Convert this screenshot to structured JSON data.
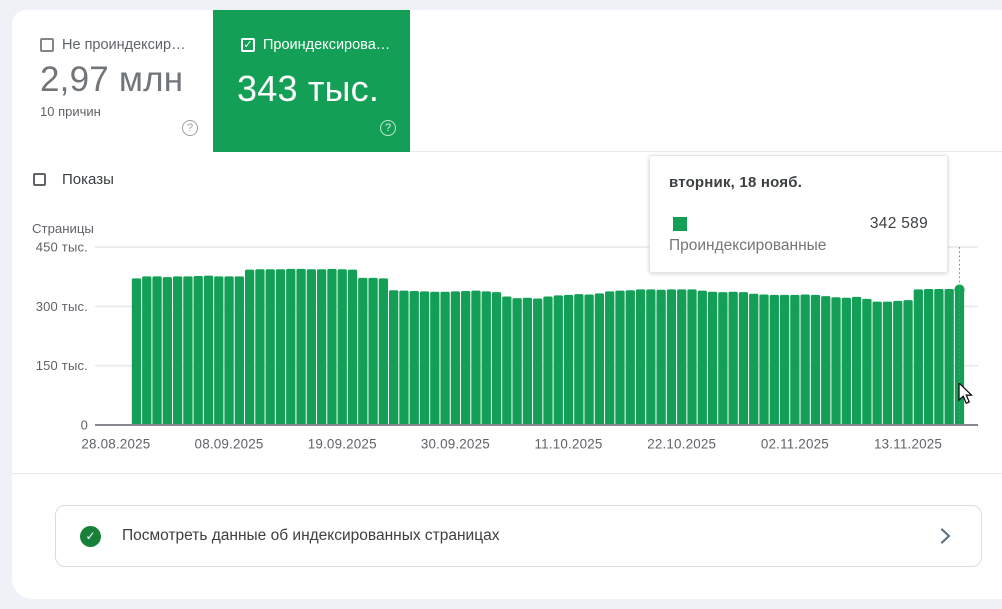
{
  "colors": {
    "green": "#13a056",
    "green_dark": "#188038",
    "page_bg": "#eef1f6",
    "grid": "#e8eaed",
    "axis": "#85898d",
    "text_dark": "#3c4043",
    "text_grey": "#5f6368"
  },
  "metrics": {
    "not_indexed": {
      "label": "Не проиндексир…",
      "value": "2,97 млн",
      "sub": "10 причин",
      "checked": false
    },
    "indexed": {
      "label": "Проиндексирова…",
      "value": "343 тыс.",
      "checked": true,
      "check_glyph": "✓"
    }
  },
  "impressions": {
    "label": "Показы",
    "checked": false
  },
  "tooltip": {
    "title": "вторник, 18 нояб.",
    "value": "342 589",
    "series": "Проиндексированные"
  },
  "cta": {
    "text": "Посмотреть данные об индексированных страницах",
    "check_glyph": "✓"
  },
  "chart_data": {
    "type": "bar",
    "title": "",
    "ylabel": "Страницы",
    "ylim": [
      0,
      450000
    ],
    "y_ticks": [
      "0",
      "150 тыс.",
      "300 тыс.",
      "450 тыс."
    ],
    "x_ticks": [
      "28.08.2025",
      "08.09.2025",
      "19.09.2025",
      "30.09.2025",
      "11.10.2025",
      "22.10.2025",
      "02.11.2025",
      "13.11.2025"
    ],
    "x_tick_day_offsets": [
      0,
      11,
      22,
      33,
      44,
      55,
      66,
      77
    ],
    "axis_start_date": "28.08.2025",
    "bars_start_day_offset": 2,
    "series_name": "Проиндексированные",
    "bar_dates_range": "30.08.2025 – 18.11.2025",
    "values": [
      371000,
      376000,
      376000,
      374000,
      376000,
      376000,
      377000,
      378000,
      376000,
      376000,
      376000,
      393000,
      394000,
      394000,
      394000,
      395000,
      395000,
      394000,
      394000,
      395000,
      394000,
      393000,
      372000,
      372000,
      371000,
      341000,
      340000,
      339000,
      338000,
      337000,
      337000,
      338000,
      339000,
      340000,
      338000,
      336000,
      325000,
      321000,
      322000,
      320000,
      325000,
      328000,
      329000,
      331000,
      330000,
      333000,
      338000,
      340000,
      341000,
      343000,
      343000,
      342000,
      343000,
      343000,
      343000,
      340000,
      337000,
      336000,
      337000,
      336000,
      332000,
      330000,
      329000,
      329000,
      329000,
      330000,
      329000,
      326000,
      323000,
      322000,
      324000,
      319000,
      312000,
      312000,
      314000,
      316000,
      343000,
      344000,
      344000,
      344000,
      342589
    ],
    "hovered_value": 342589,
    "hovered_date": "вторник, 18 нояб."
  }
}
